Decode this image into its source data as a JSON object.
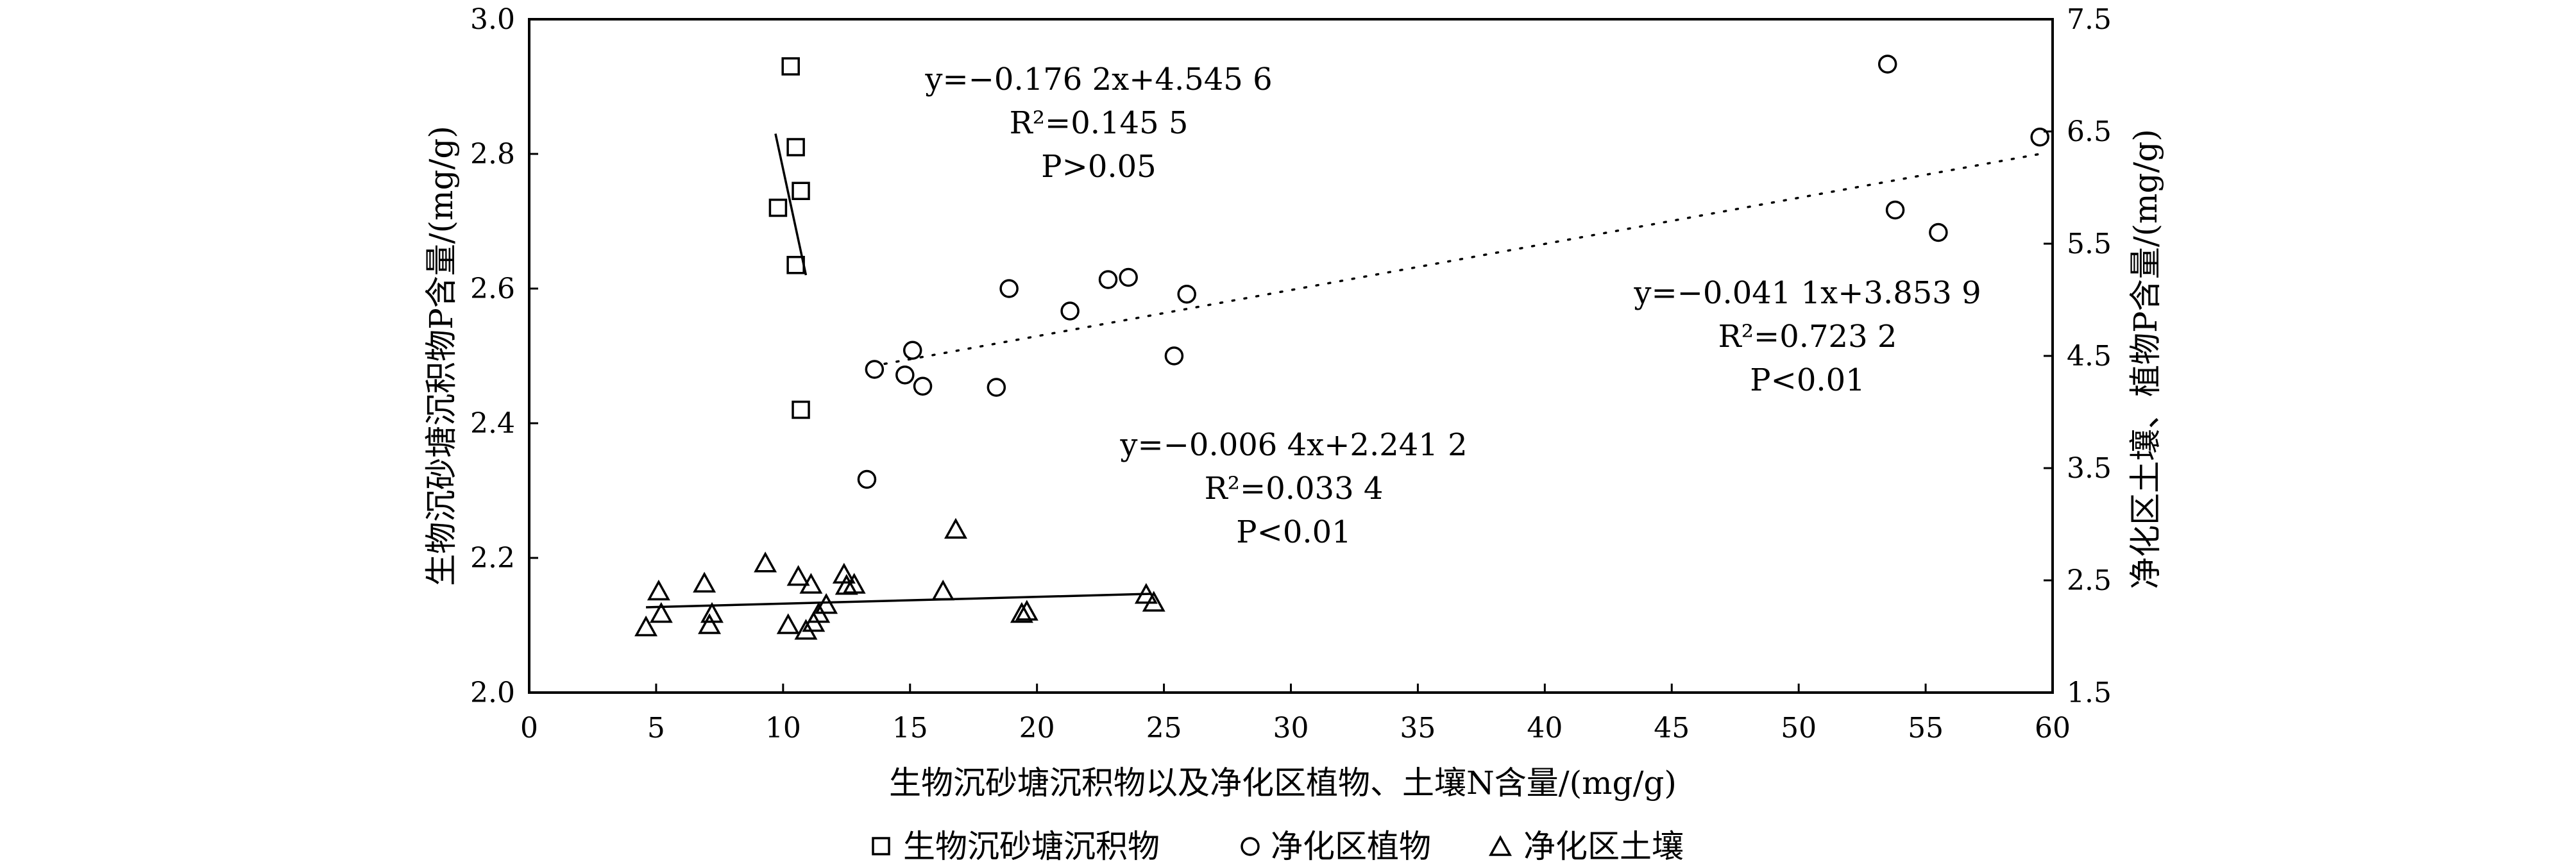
{
  "chart_data": {
    "type": "scatter",
    "xlabel": "生物沉砂塘沉积物以及净化区植物、土壤N含量/(mg/g)",
    "ylabel_left": "生物沉砂塘沉积物P含量/(mg/g)",
    "ylabel_right": "净化区土壤、植物P含量/(mg/g)",
    "xlim": [
      0,
      60
    ],
    "ylim_left": [
      2.0,
      3.0
    ],
    "ylim_right": [
      1.5,
      7.5
    ],
    "x_ticks": [
      "0",
      "5",
      "10",
      "15",
      "20",
      "25",
      "30",
      "35",
      "40",
      "45",
      "50",
      "55",
      "60"
    ],
    "y_left_ticks": [
      "2.0",
      "2.2",
      "2.4",
      "2.6",
      "2.8",
      "3.0"
    ],
    "y_right_ticks": [
      "1.5",
      "2.5",
      "3.5",
      "4.5",
      "5.5",
      "6.5",
      "7.5"
    ],
    "legend_position": "bottom",
    "series": [
      {
        "name": "生物沉砂塘沉积物",
        "marker": "square",
        "axis": "left",
        "points": [
          [
            10.3,
            2.93
          ],
          [
            10.5,
            2.81
          ],
          [
            10.7,
            2.745
          ],
          [
            9.8,
            2.72
          ],
          [
            10.5,
            2.635
          ],
          [
            10.7,
            2.42
          ]
        ],
        "fit": {
          "kind": "solid",
          "x": [
            9.7,
            10.9
          ]
        }
      },
      {
        "name": "净化区植物",
        "marker": "circle",
        "axis": "right",
        "points": [
          [
            53.5,
            7.1
          ],
          [
            59.5,
            6.45
          ],
          [
            53.8,
            5.8
          ],
          [
            55.5,
            5.6
          ],
          [
            18.9,
            5.1
          ],
          [
            22.8,
            5.18
          ],
          [
            23.6,
            5.2
          ],
          [
            25.9,
            5.05
          ],
          [
            21.3,
            4.9
          ],
          [
            15.1,
            4.55
          ],
          [
            13.6,
            4.38
          ],
          [
            14.8,
            4.33
          ],
          [
            15.5,
            4.23
          ],
          [
            18.4,
            4.22
          ],
          [
            25.4,
            4.5
          ],
          [
            13.3,
            3.4
          ]
        ],
        "fit": {
          "kind": "dotted",
          "x": [
            14.0,
            59.5
          ]
        }
      },
      {
        "name": "净化区土壤",
        "marker": "triangle",
        "axis": "right",
        "points": [
          [
            4.6,
            2.08
          ],
          [
            5.1,
            2.4
          ],
          [
            5.2,
            2.2
          ],
          [
            6.9,
            2.47
          ],
          [
            7.1,
            2.1
          ],
          [
            7.2,
            2.2
          ],
          [
            9.3,
            2.65
          ],
          [
            10.2,
            2.1
          ],
          [
            10.6,
            2.53
          ],
          [
            10.9,
            2.05
          ],
          [
            11.1,
            2.46
          ],
          [
            11.2,
            2.12
          ],
          [
            11.4,
            2.2
          ],
          [
            11.7,
            2.28
          ],
          [
            12.4,
            2.55
          ],
          [
            12.5,
            2.45
          ],
          [
            12.8,
            2.46
          ],
          [
            16.3,
            2.4
          ],
          [
            16.8,
            2.95
          ],
          [
            19.4,
            2.2
          ],
          [
            19.6,
            2.22
          ],
          [
            24.3,
            2.37
          ],
          [
            24.6,
            2.3
          ]
        ],
        "fit": {
          "kind": "solid",
          "x": [
            4.6,
            24.5
          ]
        }
      }
    ],
    "annotations": [
      {
        "id": "sediment",
        "lines": [
          "y=−0.176 2x+4.545 6",
          "R²=0.145 5",
          "P>0.05"
        ]
      },
      {
        "id": "plant",
        "lines": [
          "y=−0.041 1x+3.853 9",
          "R²=0.723 2",
          "P<0.01"
        ]
      },
      {
        "id": "soil",
        "lines": [
          "y=−0.006 4x+2.241 2",
          "R²=0.033 4",
          "P<0.01"
        ]
      }
    ]
  }
}
